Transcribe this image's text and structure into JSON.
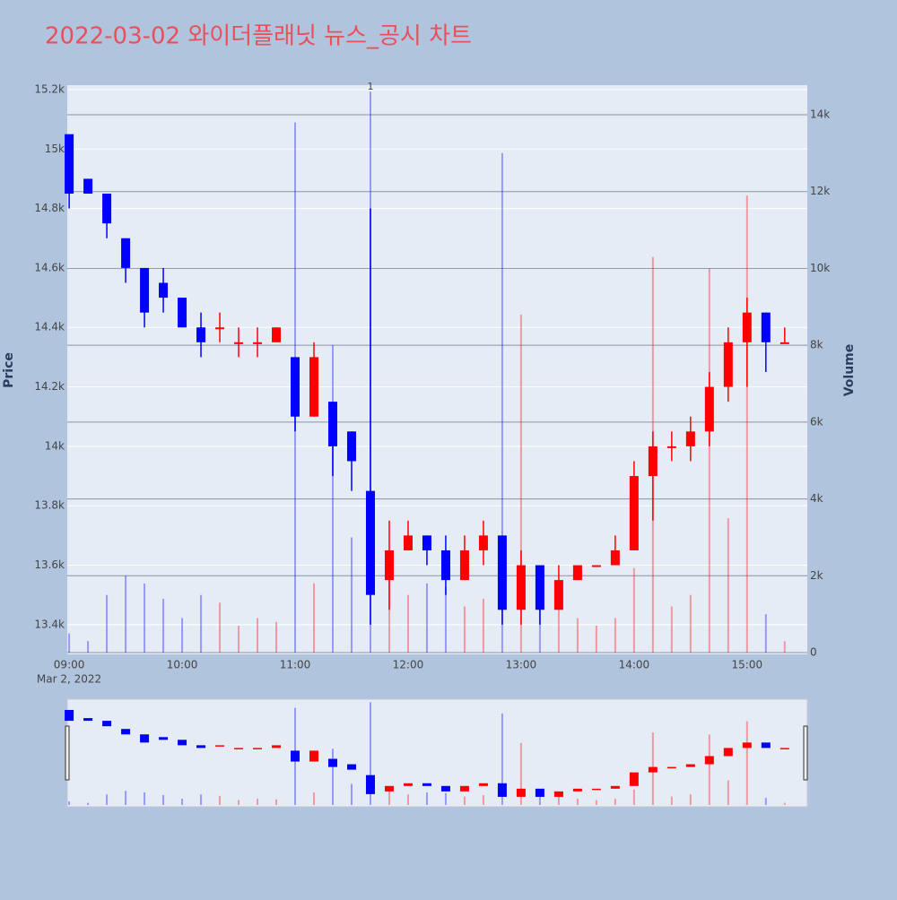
{
  "chart_data": {
    "type": "candlestick",
    "title": "2022-03-02 와이더플래닛 뉴스_공시 차트",
    "y_label": "Price",
    "y2_label": "Volume",
    "date_label": "Mar 2, 2022",
    "annotation": {
      "x": "11:40",
      "text": "1"
    },
    "x": [
      "09:00",
      "09:10",
      "09:20",
      "09:30",
      "09:40",
      "09:50",
      "10:00",
      "10:10",
      "10:20",
      "10:30",
      "10:40",
      "10:50",
      "11:00",
      "11:10",
      "11:20",
      "11:30",
      "11:40",
      "11:50",
      "12:00",
      "12:10",
      "12:20",
      "12:30",
      "12:40",
      "12:50",
      "13:00",
      "13:10",
      "13:20",
      "13:30",
      "13:40",
      "13:50",
      "14:00",
      "14:10",
      "14:20",
      "14:30",
      "14:40",
      "14:50",
      "15:00",
      "15:10",
      "15:20"
    ],
    "open": [
      15050,
      14900,
      14850,
      14700,
      14600,
      14550,
      14500,
      14400,
      14400,
      14350,
      14350,
      14350,
      14300,
      14100,
      14150,
      14050,
      13850,
      13550,
      13650,
      13700,
      13650,
      13550,
      13650,
      13700,
      13450,
      13600,
      13450,
      13550,
      13600,
      13600,
      13650,
      13900,
      14000,
      14000,
      14050,
      14200,
      14350,
      14450,
      14350
    ],
    "high": [
      15050,
      14900,
      14850,
      14700,
      14600,
      14600,
      14500,
      14450,
      14450,
      14400,
      14400,
      14400,
      14300,
      14350,
      14150,
      14050,
      14800,
      13750,
      13750,
      13700,
      13700,
      13700,
      13750,
      13700,
      13650,
      13600,
      13600,
      13600,
      13600,
      13700,
      13950,
      14050,
      14050,
      14100,
      14250,
      14400,
      14500,
      14450,
      14400
    ],
    "low": [
      14800,
      14850,
      14700,
      14550,
      14400,
      14450,
      14400,
      14300,
      14350,
      14300,
      14300,
      14350,
      14050,
      14100,
      13900,
      13850,
      13400,
      13450,
      13650,
      13600,
      13500,
      13550,
      13600,
      13400,
      13400,
      13400,
      13450,
      13550,
      13600,
      13600,
      13650,
      13750,
      13950,
      13950,
      14000,
      14150,
      14200,
      14250,
      14350
    ],
    "close": [
      14850,
      14850,
      14750,
      14600,
      14450,
      14500,
      14400,
      14350,
      14400,
      14350,
      14350,
      14400,
      14100,
      14300,
      14000,
      13950,
      13500,
      13650,
      13700,
      13650,
      13550,
      13650,
      13700,
      13450,
      13600,
      13450,
      13550,
      13600,
      13600,
      13650,
      13900,
      14000,
      14000,
      14050,
      14200,
      14350,
      14450,
      14350,
      14350
    ],
    "volume": [
      500,
      300,
      1500,
      2000,
      1800,
      1400,
      900,
      1500,
      1300,
      700,
      900,
      800,
      13800,
      1800,
      8000,
      3000,
      14600,
      2500,
      1500,
      1800,
      1700,
      1200,
      1400,
      13000,
      8800,
      1500,
      1200,
      900,
      700,
      900,
      2200,
      10300,
      1200,
      1500,
      10000,
      3500,
      11900,
      1000,
      300
    ],
    "increasing_color": "#ff0000",
    "decreasing_color": "#0000ff",
    "xlim": [
      "08:59",
      "15:32"
    ],
    "xticks": [
      "09:00",
      "10:00",
      "11:00",
      "12:00",
      "13:00",
      "14:00",
      "15:00"
    ],
    "ylim": [
      13300,
      15215
    ],
    "yticks": [
      {
        "value": 13400,
        "label": "13.4k"
      },
      {
        "value": 13600,
        "label": "13.6k"
      },
      {
        "value": 13800,
        "label": "13.8k"
      },
      {
        "value": 14000,
        "label": "14k"
      },
      {
        "value": 14200,
        "label": "14.2k"
      },
      {
        "value": 14400,
        "label": "14.4k"
      },
      {
        "value": 14600,
        "label": "14.6k"
      },
      {
        "value": 14800,
        "label": "14.8k"
      },
      {
        "value": 15000,
        "label": "15k"
      },
      {
        "value": 15200,
        "label": "15.2k"
      }
    ],
    "y2lim": [
      0,
      14770
    ],
    "y2ticks": [
      0,
      {
        "value": 2000,
        "label": "2k"
      },
      {
        "value": 4000,
        "label": "4k"
      },
      {
        "value": 6000,
        "label": "6k"
      },
      {
        "value": 8000,
        "label": "8k"
      },
      {
        "value": 10000,
        "label": "10k"
      },
      {
        "value": 12000,
        "label": "12k"
      },
      {
        "value": 14000,
        "label": "14k"
      }
    ],
    "grid": true,
    "rangeslider": true
  }
}
